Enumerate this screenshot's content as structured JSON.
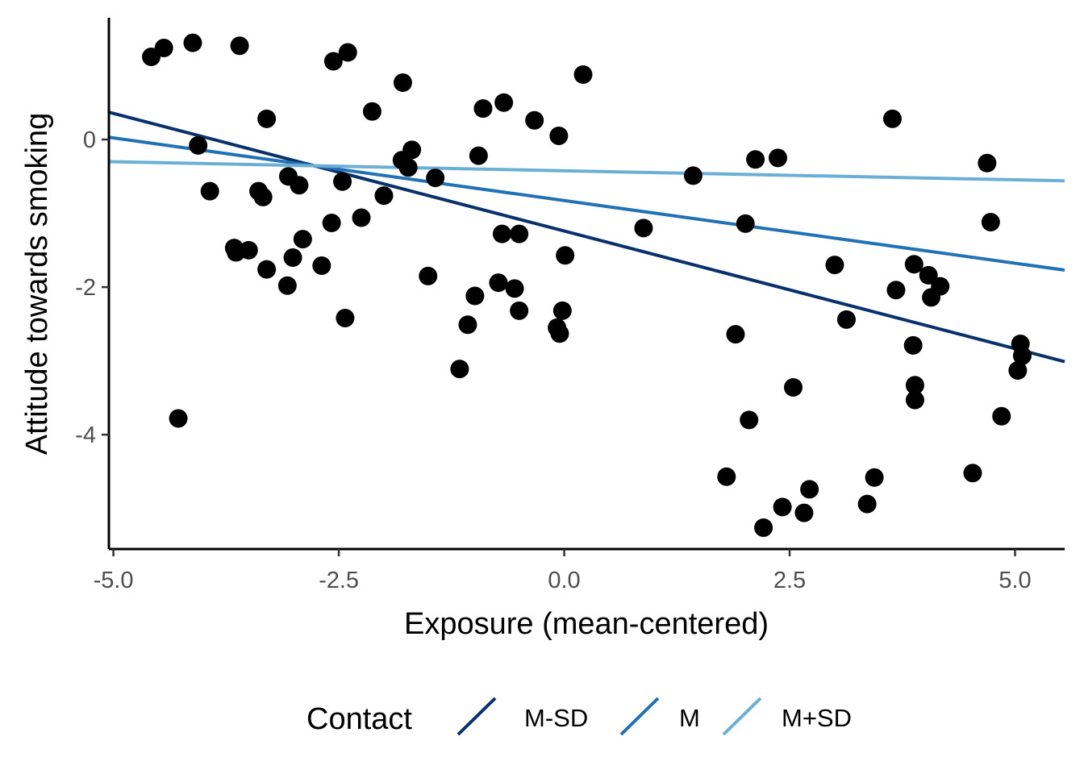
{
  "chart_data": {
    "type": "scatter",
    "xlabel": "Exposure (mean-centered)",
    "ylabel": "Attitude towards smoking",
    "xlim": [
      -5.05,
      5.55
    ],
    "ylim": [
      -5.55,
      1.65
    ],
    "x_ticks": [
      {
        "value": -5.0,
        "label": "-5.0"
      },
      {
        "value": -2.5,
        "label": "-2.5"
      },
      {
        "value": 0.0,
        "label": "0.0"
      },
      {
        "value": 2.5,
        "label": "2.5"
      },
      {
        "value": 5.0,
        "label": "5.0"
      }
    ],
    "y_ticks": [
      {
        "value": 0,
        "label": "0"
      },
      {
        "value": -2,
        "label": "-2"
      },
      {
        "value": -4,
        "label": "-4"
      }
    ],
    "grid": false,
    "legend": {
      "title": "Contact",
      "position": "bottom",
      "entries": [
        "M-SD",
        "M",
        "M+SD"
      ]
    },
    "points": [
      {
        "x": -4.58,
        "y": 1.12
      },
      {
        "x": -4.44,
        "y": 1.24
      },
      {
        "x": -4.12,
        "y": 1.31
      },
      {
        "x": -3.6,
        "y": 1.27
      },
      {
        "x": -2.56,
        "y": 1.06
      },
      {
        "x": -2.4,
        "y": 1.18
      },
      {
        "x": -1.79,
        "y": 0.77
      },
      {
        "x": 0.21,
        "y": 0.88
      },
      {
        "x": -0.67,
        "y": 0.5
      },
      {
        "x": -0.9,
        "y": 0.42
      },
      {
        "x": -2.13,
        "y": 0.38
      },
      {
        "x": -3.3,
        "y": 0.28
      },
      {
        "x": -0.33,
        "y": 0.26
      },
      {
        "x": -0.06,
        "y": 0.05
      },
      {
        "x": -4.06,
        "y": -0.08
      },
      {
        "x": -1.69,
        "y": -0.14
      },
      {
        "x": -1.8,
        "y": -0.28
      },
      {
        "x": -0.95,
        "y": -0.22
      },
      {
        "x": -1.73,
        "y": -0.38
      },
      {
        "x": -3.06,
        "y": -0.5
      },
      {
        "x": -1.43,
        "y": -0.52
      },
      {
        "x": -2.46,
        "y": -0.57
      },
      {
        "x": -2.94,
        "y": -0.62
      },
      {
        "x": -3.39,
        "y": -0.7
      },
      {
        "x": -3.93,
        "y": -0.7
      },
      {
        "x": -3.34,
        "y": -0.78
      },
      {
        "x": -2.0,
        "y": -0.76
      },
      {
        "x": -2.25,
        "y": -1.06
      },
      {
        "x": -2.58,
        "y": -1.13
      },
      {
        "x": -0.69,
        "y": -1.28
      },
      {
        "x": -0.5,
        "y": -1.28
      },
      {
        "x": -2.9,
        "y": -1.35
      },
      {
        "x": -3.66,
        "y": -1.47
      },
      {
        "x": -3.5,
        "y": -1.5
      },
      {
        "x": -3.64,
        "y": -1.53
      },
      {
        "x": -3.01,
        "y": -1.6
      },
      {
        "x": 0.01,
        "y": -1.57
      },
      {
        "x": -2.69,
        "y": -1.71
      },
      {
        "x": -3.3,
        "y": -1.76
      },
      {
        "x": -1.51,
        "y": -1.85
      },
      {
        "x": -0.73,
        "y": -1.94
      },
      {
        "x": -3.07,
        "y": -1.98
      },
      {
        "x": -0.55,
        "y": -2.02
      },
      {
        "x": -0.99,
        "y": -2.12
      },
      {
        "x": -0.5,
        "y": -2.32
      },
      {
        "x": -0.02,
        "y": -2.32
      },
      {
        "x": -2.43,
        "y": -2.42
      },
      {
        "x": -1.07,
        "y": -2.51
      },
      {
        "x": -0.08,
        "y": -2.55
      },
      {
        "x": -0.05,
        "y": -2.63
      },
      {
        "x": -1.16,
        "y": -3.11
      },
      {
        "x": -4.28,
        "y": -3.78
      },
      {
        "x": 0.88,
        "y": -1.2
      },
      {
        "x": 1.43,
        "y": -0.49
      },
      {
        "x": 2.12,
        "y": -0.27
      },
      {
        "x": 2.37,
        "y": -0.25
      },
      {
        "x": 3.64,
        "y": 0.28
      },
      {
        "x": 4.69,
        "y": -0.32
      },
      {
        "x": 2.01,
        "y": -1.14
      },
      {
        "x": 4.73,
        "y": -1.12
      },
      {
        "x": 3.0,
        "y": -1.7
      },
      {
        "x": 3.88,
        "y": -1.69
      },
      {
        "x": 4.04,
        "y": -1.84
      },
      {
        "x": 4.17,
        "y": -1.99
      },
      {
        "x": 3.68,
        "y": -2.04
      },
      {
        "x": 4.07,
        "y": -2.14
      },
      {
        "x": 3.13,
        "y": -2.44
      },
      {
        "x": 1.9,
        "y": -2.64
      },
      {
        "x": 3.87,
        "y": -2.79
      },
      {
        "x": 5.06,
        "y": -2.77
      },
      {
        "x": 5.08,
        "y": -2.93
      },
      {
        "x": 5.03,
        "y": -3.13
      },
      {
        "x": 3.89,
        "y": -3.33
      },
      {
        "x": 3.89,
        "y": -3.53
      },
      {
        "x": 2.54,
        "y": -3.36
      },
      {
        "x": 2.05,
        "y": -3.8
      },
      {
        "x": 4.85,
        "y": -3.75
      },
      {
        "x": 1.8,
        "y": -4.57
      },
      {
        "x": 4.53,
        "y": -4.52
      },
      {
        "x": 3.44,
        "y": -4.58
      },
      {
        "x": 2.72,
        "y": -4.74
      },
      {
        "x": 2.42,
        "y": -4.98
      },
      {
        "x": 2.66,
        "y": -5.06
      },
      {
        "x": 3.36,
        "y": -4.94
      },
      {
        "x": 2.21,
        "y": -5.26
      }
    ],
    "series": [
      {
        "name": "M-SD",
        "color": "#08306b",
        "x": [
          -5.05,
          5.55
        ],
        "y": [
          0.37,
          -3.01
        ]
      },
      {
        "name": "M",
        "color": "#2171b5",
        "x": [
          -5.05,
          5.55
        ],
        "y": [
          0.03,
          -1.77
        ]
      },
      {
        "name": "M+SD",
        "color": "#6baed6",
        "x": [
          -5.05,
          5.55
        ],
        "y": [
          -0.3,
          -0.56
        ]
      }
    ]
  }
}
